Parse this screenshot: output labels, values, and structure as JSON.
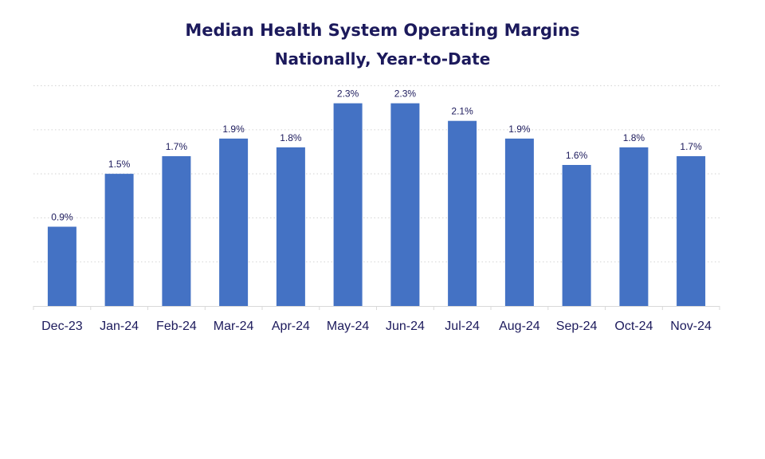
{
  "chart_data": {
    "type": "bar",
    "title": "Median Health System Operating Margins",
    "subtitle": "Nationally, Year-to-Date",
    "xlabel": "",
    "ylabel": "",
    "categories": [
      "Dec-23",
      "Jan-24",
      "Feb-24",
      "Mar-24",
      "Apr-24",
      "May-24",
      "Jun-24",
      "Jul-24",
      "Aug-24",
      "Sep-24",
      "Oct-24",
      "Nov-24"
    ],
    "values": [
      0.9,
      1.5,
      1.7,
      1.9,
      1.8,
      2.3,
      2.3,
      2.1,
      1.9,
      1.6,
      1.8,
      1.7
    ],
    "value_labels": [
      "0.9%",
      "1.5%",
      "1.7%",
      "1.9%",
      "1.8%",
      "2.3%",
      "2.3%",
      "2.1%",
      "1.9%",
      "1.6%",
      "1.8%",
      "1.7%"
    ],
    "ylim": [
      0,
      2.5
    ],
    "gridlines": true,
    "gridline_style": "dotted",
    "y_axis_visible": false,
    "legend": "none",
    "bar_color": "#4472c4",
    "text_color": "#1c1a5c",
    "grid_color": "#d9d9d9"
  }
}
